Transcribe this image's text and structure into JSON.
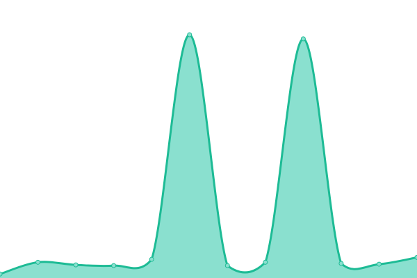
{
  "chart_data": {
    "type": "area",
    "curve": "smooth",
    "x": [
      0,
      1,
      2,
      3,
      4,
      5,
      6,
      7,
      8,
      9,
      10,
      11
    ],
    "series": [
      {
        "values": [
          0.5,
          5.4,
          4.3,
          4.0,
          6.6,
          100,
          4.0,
          5.4,
          98.3,
          4.9,
          4.6,
          7.4
        ]
      }
    ],
    "ylim": [
      0,
      100
    ],
    "grid": false,
    "axes_visible": false,
    "legend": "none",
    "colors": {
      "line": "#1dbb95",
      "fill": "#8ae0cf",
      "marker_fill": "#8ae0cf",
      "marker_stroke": "#1dbb95"
    }
  }
}
